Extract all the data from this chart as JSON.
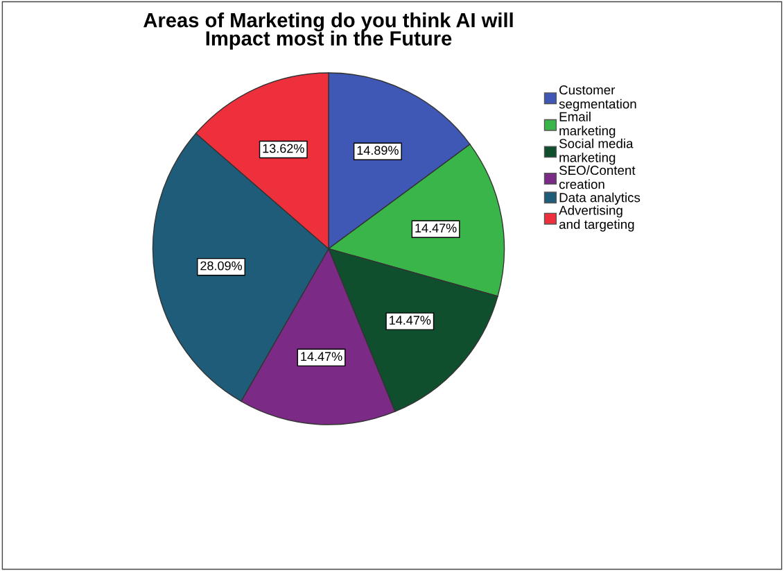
{
  "chart_data": {
    "type": "pie",
    "title": "Areas of Marketing do you think AI will\nImpact most in the Future",
    "categories": [
      "Customer\nsegmentation",
      "Email\nmarketing",
      "Social media\nmarketing",
      "SEO/Content\ncreation",
      "Data analytics",
      "Advertising\nand targeting"
    ],
    "values": [
      14.89,
      14.47,
      14.47,
      14.47,
      28.09,
      13.62
    ],
    "value_labels": [
      "14.89%",
      "14.47%",
      "14.47%",
      "14.47%",
      "28.09%",
      "13.62%"
    ],
    "colors": [
      "#3f57b5",
      "#3ab54a",
      "#0f4f2e",
      "#7b2a85",
      "#1f5c7a",
      "#ee2f3c"
    ],
    "legend": "top right"
  }
}
